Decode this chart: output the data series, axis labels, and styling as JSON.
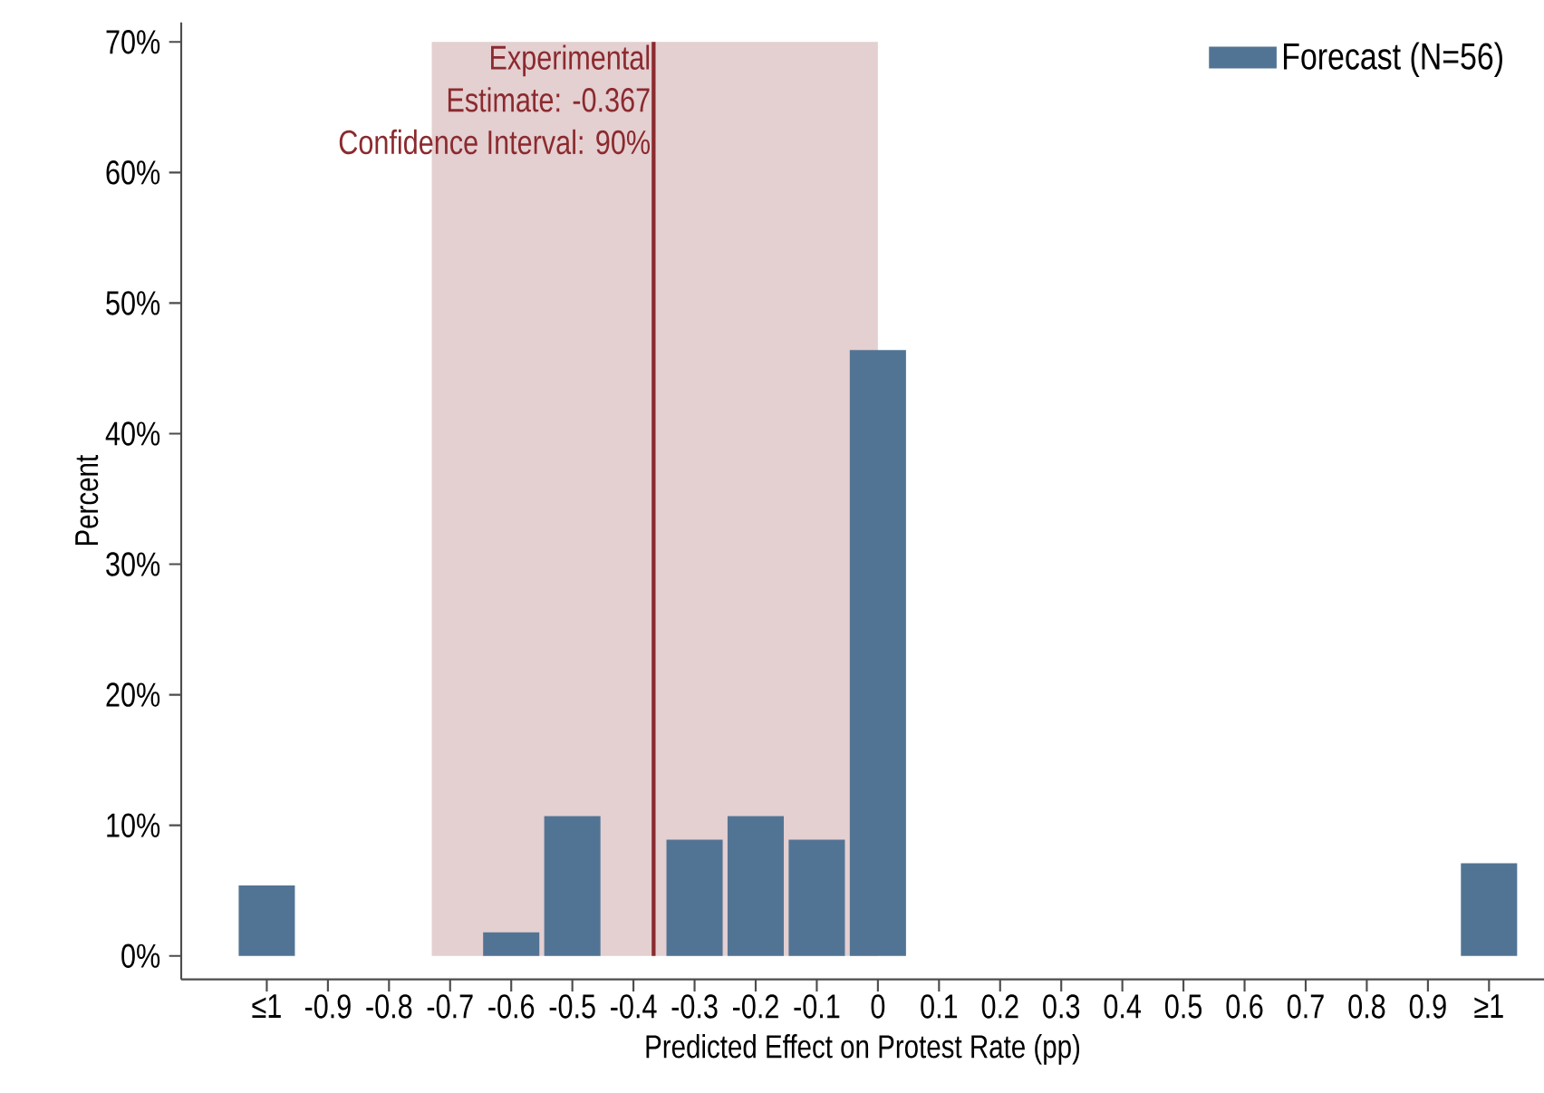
{
  "chart_data": {
    "type": "bar",
    "xlabel": "Predicted Effect on Protest Rate (pp)",
    "ylabel": "Percent",
    "x": [
      -1,
      -0.9,
      -0.8,
      -0.7,
      -0.6,
      -0.5,
      -0.4,
      -0.3,
      -0.2,
      -0.1,
      0,
      0.1,
      0.2,
      0.3,
      0.4,
      0.5,
      0.6,
      0.7,
      0.8,
      0.9,
      1
    ],
    "series": [
      {
        "name": "Forecast (N=56)",
        "color": "#527494",
        "values": [
          5.4,
          null,
          null,
          null,
          1.8,
          10.7,
          null,
          8.9,
          10.7,
          8.9,
          46.4,
          null,
          null,
          null,
          null,
          null,
          null,
          null,
          null,
          null,
          7.1
        ]
      }
    ],
    "xlim": [
      -1.14,
      1.09
    ],
    "ylim": [
      -1.8,
      71.5
    ],
    "xticks": [
      {
        "value": -1,
        "label": "≤1"
      },
      -0.9,
      -0.8,
      -0.7,
      -0.6,
      -0.5,
      -0.4,
      -0.3,
      -0.2,
      -0.1,
      0,
      0.1,
      0.2,
      0.3,
      0.4,
      0.5,
      0.6,
      0.7,
      0.8,
      0.9,
      {
        "value": 1,
        "label": "≥1"
      }
    ],
    "yticks": [
      {
        "value": 0,
        "label": "0%"
      },
      {
        "value": 10,
        "label": "10%"
      },
      {
        "value": 20,
        "label": "20%"
      },
      {
        "value": 30,
        "label": "30%"
      },
      {
        "value": 40,
        "label": "40%"
      },
      {
        "value": 50,
        "label": "50%"
      },
      {
        "value": 60,
        "label": "60%"
      },
      {
        "value": 70,
        "label": "70%"
      }
    ],
    "bands": [
      {
        "axis": "x",
        "from": -0.73,
        "to": 0,
        "color": "#e4cfd1"
      }
    ],
    "ref_lines": [
      {
        "axis": "x",
        "value": -0.367,
        "color": "#8b2a2e"
      }
    ],
    "annotations": [
      "Experimental",
      "Estimate: -0.367",
      "Confidence Interval: 90%"
    ],
    "legend": "top right",
    "grid": false
  }
}
